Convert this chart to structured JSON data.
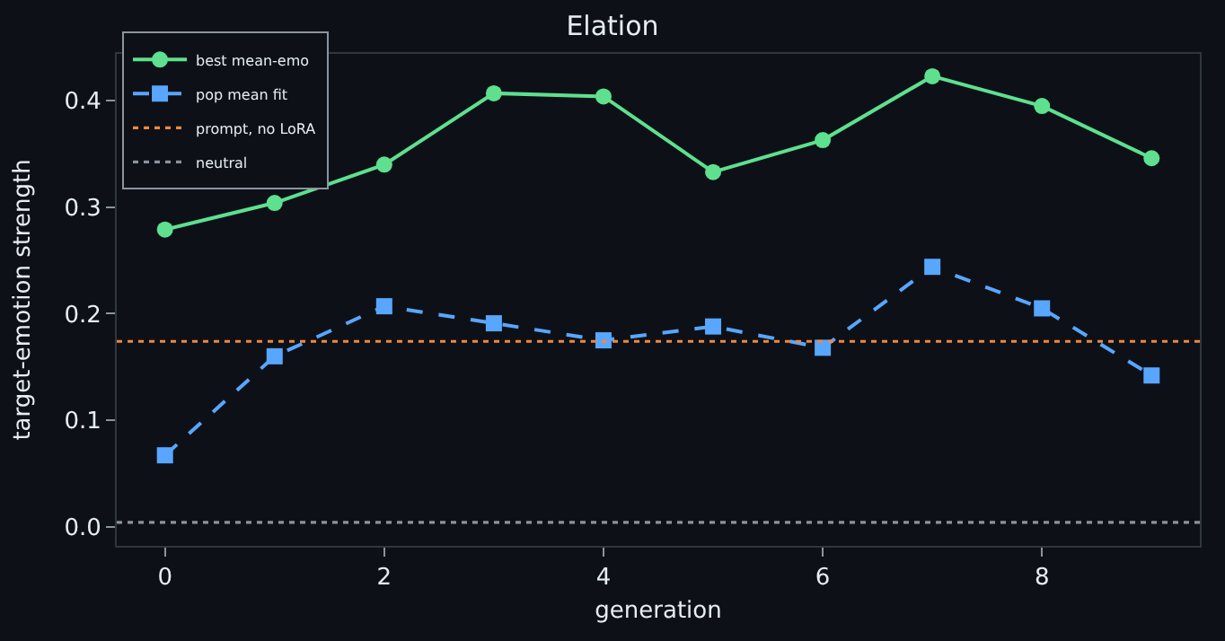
{
  "chart_data": {
    "type": "line",
    "title": "Elation",
    "xlabel": "generation",
    "ylabel": "target-emotion strength",
    "x": [
      0,
      1,
      2,
      3,
      4,
      5,
      6,
      7,
      8,
      9
    ],
    "series": [
      {
        "name": "best mean-emo",
        "color": "#5ee08f",
        "marker": "circle",
        "line_style": "solid",
        "values": [
          0.279,
          0.304,
          0.34,
          0.407,
          0.404,
          0.333,
          0.363,
          0.423,
          0.395,
          0.346
        ]
      },
      {
        "name": "pop mean fit",
        "color": "#58a6ff",
        "marker": "square",
        "line_style": "dashed",
        "values": [
          0.067,
          0.16,
          0.207,
          0.191,
          0.175,
          0.188,
          0.168,
          0.244,
          0.205,
          0.142
        ]
      }
    ],
    "ref_lines": [
      {
        "axis": "y",
        "value": 0.174,
        "label": "prompt, no LoRA",
        "color": "#f0883e",
        "line_style": "dotted"
      },
      {
        "axis": "y",
        "value": 0.004,
        "label": "neutral",
        "color": "#8b949e",
        "line_style": "dotted"
      }
    ],
    "xlim": [
      -0.44,
      9.44
    ],
    "xticks": [
      0,
      2,
      4,
      6,
      8
    ],
    "ylim": [
      -0.018,
      0.444
    ],
    "yticks": [
      {
        "value": 0,
        "label": "0.0"
      },
      0.1,
      0.2,
      0.3,
      0.4
    ],
    "grid": false,
    "legend": "top left"
  }
}
